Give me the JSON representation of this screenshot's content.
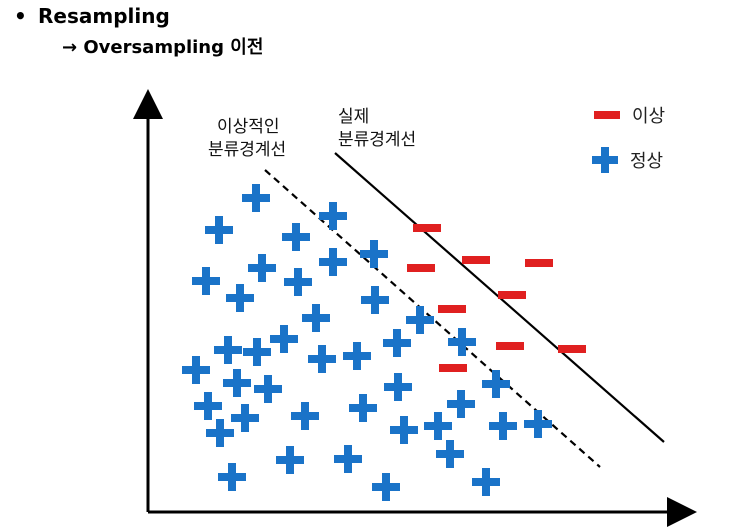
{
  "heading": {
    "bullet": "•",
    "title": "Resampling",
    "subtitle": "→ Oversampling 이전"
  },
  "labels": {
    "ideal_boundary_line1": "이상적인",
    "ideal_boundary_line2": "분류경계선",
    "actual_boundary_line1": "실제",
    "actual_boundary_line2": "분류경계선"
  },
  "legend": {
    "minus_label": "이상",
    "plus_label": "정상"
  },
  "colors": {
    "minus": "#e02020",
    "plus": "#1a73c8",
    "axis": "#000000"
  },
  "icons": {
    "minus": "minus-marker",
    "plus": "plus-marker"
  }
}
